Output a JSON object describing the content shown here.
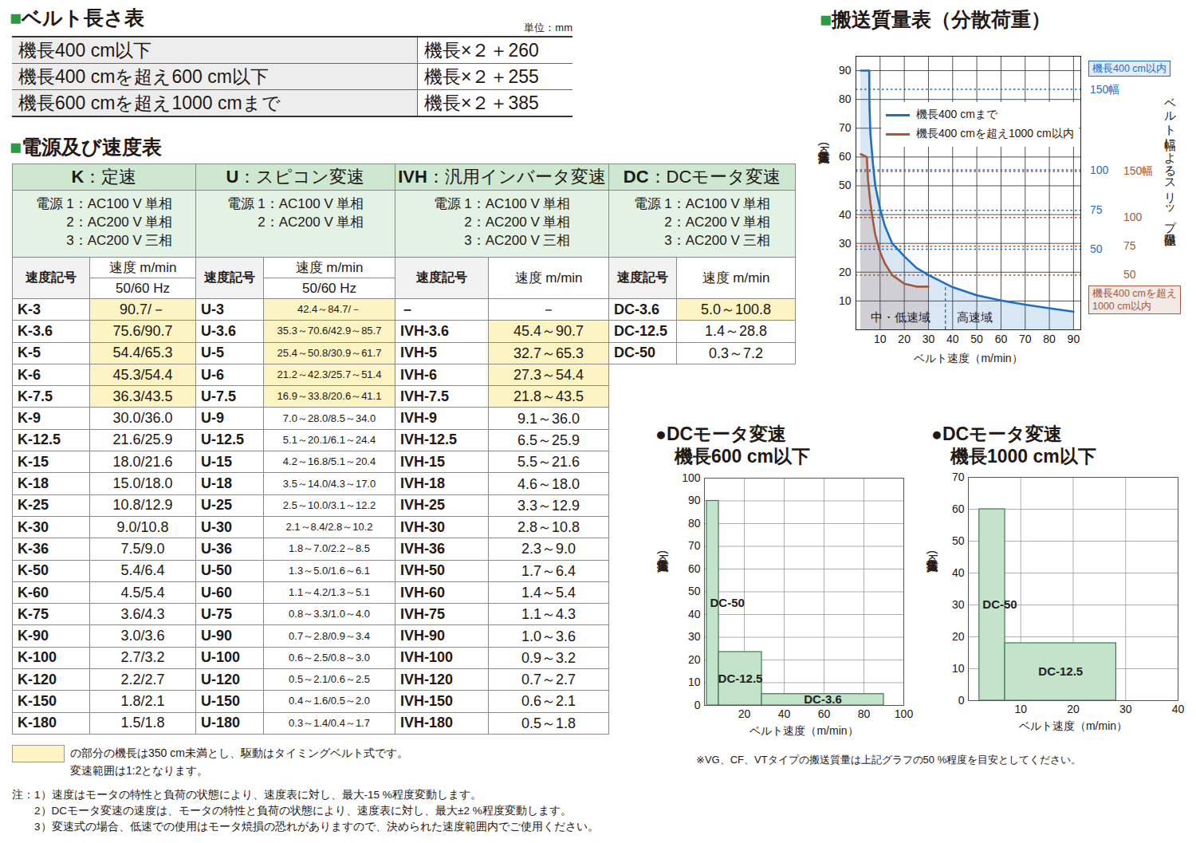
{
  "belt_length_table": {
    "title": "■ベルト長さ表",
    "unit": "単位：mm",
    "rows": [
      [
        "機長400 cm以下",
        "機長×２＋260"
      ],
      [
        "機長400 cmを超え600 cm以下",
        "機長×２＋255"
      ],
      [
        "機長600 cmを超え1000 cmまで",
        "機長×２＋385"
      ]
    ]
  },
  "power_speed_table": {
    "title": "■電源及び速度表",
    "sections": [
      {
        "title": "K：定速",
        "power": [
          "電源 1：AC100 V 単相",
          "2：AC200 V 単相",
          "3：AC200 V 三相"
        ],
        "headers": [
          "速度記号",
          "速度 m/min",
          "50/60 Hz"
        ],
        "rows": [
          [
            "K-3",
            "90.7/－"
          ],
          [
            "K-3.6",
            "75.6/90.7"
          ],
          [
            "K-5",
            "54.4/65.3"
          ],
          [
            "K-6",
            "45.3/54.4"
          ],
          [
            "K-7.5",
            "36.3/43.5"
          ],
          [
            "K-9",
            "30.0/36.0"
          ],
          [
            "K-12.5",
            "21.6/25.9"
          ],
          [
            "K-15",
            "18.0/21.6"
          ],
          [
            "K-18",
            "15.0/18.0"
          ],
          [
            "K-25",
            "10.8/12.9"
          ],
          [
            "K-30",
            "9.0/10.8"
          ],
          [
            "K-36",
            "7.5/9.0"
          ],
          [
            "K-50",
            "5.4/6.4"
          ],
          [
            "K-60",
            "4.5/5.4"
          ],
          [
            "K-75",
            "3.6/4.3"
          ],
          [
            "K-90",
            "3.0/3.6"
          ],
          [
            "K-100",
            "2.7/3.2"
          ],
          [
            "K-120",
            "2.2/2.7"
          ],
          [
            "K-150",
            "1.8/2.1"
          ],
          [
            "K-180",
            "1.5/1.8"
          ]
        ],
        "highlighted_rows": [
          0,
          1,
          2,
          3,
          4
        ]
      },
      {
        "title": "U：スピコン変速",
        "power": [
          "電源 1：AC100 V 単相",
          "2：AC200 V 単相"
        ],
        "headers": [
          "速度記号",
          "速度 m/min",
          "50/60 Hz"
        ],
        "rows": [
          [
            "U-3",
            "42.4～84.7/－"
          ],
          [
            "U-3.6",
            "35.3～70.6/42.9～85.7"
          ],
          [
            "U-5",
            "25.4～50.8/30.9～61.7"
          ],
          [
            "U-6",
            "21.2～42.3/25.7～51.4"
          ],
          [
            "U-7.5",
            "16.9～33.8/20.6～41.1"
          ],
          [
            "U-9",
            "7.0～28.0/8.5～34.0"
          ],
          [
            "U-12.5",
            "5.1～20.1/6.1～24.4"
          ],
          [
            "U-15",
            "4.2～16.8/5.1～20.4"
          ],
          [
            "U-18",
            "3.5～14.0/4.3～17.0"
          ],
          [
            "U-25",
            "2.5～10.0/3.1～12.2"
          ],
          [
            "U-30",
            "2.1～8.4/2.8～10.2"
          ],
          [
            "U-36",
            "1.8～7.0/2.2～8.5"
          ],
          [
            "U-50",
            "1.3～5.0/1.6～6.1"
          ],
          [
            "U-60",
            "1.1～4.2/1.3～5.1"
          ],
          [
            "U-75",
            "0.8～3.3/1.0～4.0"
          ],
          [
            "U-90",
            "0.7～2.8/0.9～3.4"
          ],
          [
            "U-100",
            "0.6～2.5/0.8～3.0"
          ],
          [
            "U-120",
            "0.5～2.1/0.6～2.5"
          ],
          [
            "U-150",
            "0.4～1.6/0.5～2.0"
          ],
          [
            "U-180",
            "0.3～1.4/0.4～1.7"
          ]
        ],
        "highlighted_rows": [
          0,
          1,
          2,
          3,
          4
        ]
      },
      {
        "title": "IVH：汎用インバータ変速",
        "power": [
          "電源 1：AC100 V 単相",
          "2：AC200 V 単相",
          "3：AC200 V 三相"
        ],
        "headers": [
          "速度記号",
          "速度 m/min"
        ],
        "rows": [
          [
            "－",
            "－"
          ],
          [
            "IVH-3.6",
            "45.4～90.7"
          ],
          [
            "IVH-5",
            "32.7～65.3"
          ],
          [
            "IVH-6",
            "27.3～54.4"
          ],
          [
            "IVH-7.5",
            "21.8～43.5"
          ],
          [
            "IVH-9",
            "9.1～36.0"
          ],
          [
            "IVH-12.5",
            "6.5～25.9"
          ],
          [
            "IVH-15",
            "5.5～21.6"
          ],
          [
            "IVH-18",
            "4.6～18.0"
          ],
          [
            "IVH-25",
            "3.3～12.9"
          ],
          [
            "IVH-30",
            "2.8～10.8"
          ],
          [
            "IVH-36",
            "2.3～9.0"
          ],
          [
            "IVH-50",
            "1.7～6.4"
          ],
          [
            "IVH-60",
            "1.4～5.4"
          ],
          [
            "IVH-75",
            "1.1～4.3"
          ],
          [
            "IVH-90",
            "1.0～3.6"
          ],
          [
            "IVH-100",
            "0.9～3.2"
          ],
          [
            "IVH-120",
            "0.7～2.7"
          ],
          [
            "IVH-150",
            "0.6～2.1"
          ],
          [
            "IVH-180",
            "0.5～1.8"
          ]
        ],
        "highlighted_rows": [
          1,
          2,
          3,
          4
        ]
      },
      {
        "title": "DC：DCモータ変速",
        "power": [
          "電源 1：AC100 V 単相",
          "2：AC200 V 単相",
          "3：AC200 V 三相"
        ],
        "headers": [
          "速度記号",
          "速度 m/min"
        ],
        "rows": [
          [
            "DC-3.6",
            "5.0～100.8"
          ],
          [
            "DC-12.5",
            "1.4～28.8"
          ],
          [
            "DC-50",
            "0.3～7.2"
          ]
        ],
        "highlighted_rows": [
          0
        ]
      }
    ]
  },
  "highlight_note": {
    "color": "#fcf4c2",
    "lines": [
      "の部分の機長は350 cm未満とし、駆動はタイミングベルト式です。",
      "変速範囲は1:2となります。"
    ]
  },
  "notes": [
    "注：1）速度はモータの特性と負荷の状態により、速度表に対し、最大-15 %程度変動します。",
    "2）DCモータ変速の速度は、モータの特性と負荷の状態により、速度表に対し、最大±2 %程度変動します。",
    "3）変速式の場合、低速での使用はモータ焼損の恐れがありますので、決められた速度範囲内でご使用ください。"
  ],
  "chart_data": [
    {
      "type": "line",
      "title": "■搬送質量表（分散荷重）",
      "x_label": "ベルト速度（m/min）",
      "y_label": "搬送質量(kg)",
      "xlim": [
        0,
        93
      ],
      "ylim": [
        0,
        95
      ],
      "xticks": [
        10,
        20,
        30,
        40,
        50,
        60,
        70,
        80,
        90
      ],
      "yticks": [
        10,
        20,
        30,
        40,
        50,
        60,
        70,
        80,
        90
      ],
      "grid": true,
      "legend": "top-right",
      "series": [
        {
          "name": "機長400 cmまで",
          "color": "#1f6fc0",
          "x": [
            2,
            5.5,
            5.6,
            6,
            7,
            8,
            10,
            12,
            15,
            20,
            25,
            30,
            40,
            50,
            60,
            70,
            80,
            90
          ],
          "values": [
            90,
            90,
            78,
            68,
            58,
            50,
            42,
            36,
            30,
            25.5,
            21.5,
            19,
            14.8,
            12,
            10.2,
            8.7,
            7.5,
            6.3
          ]
        },
        {
          "name": "機長400 cmを超え1000 cm以内",
          "color": "#a35a3c",
          "x": [
            2,
            4.5,
            5,
            6,
            7,
            8,
            10,
            12,
            15,
            20,
            25,
            30
          ],
          "values": [
            61,
            60,
            52,
            44,
            38,
            33,
            27,
            23,
            19,
            16,
            15,
            15
          ]
        }
      ],
      "slip_limits": {
        "title": "ベルト幅によるスリップ限界値",
        "groups": [
          {
            "name": "機長400 cm以内",
            "color": "#1f6fc0",
            "lines": [
              {
                "label": "150幅",
                "value": 83.5
              },
              {
                "label": "100",
                "value": 55.5
              },
              {
                "label": "75",
                "value": 41.5
              },
              {
                "label": "50",
                "value": 28
              }
            ]
          },
          {
            "name": "機長400 cmを超え\n1000 cm以内",
            "color": "#a35a3c",
            "lines": [
              {
                "label": "150幅",
                "value": 55
              },
              {
                "label": "100",
                "value": 39
              },
              {
                "label": "75",
                "value": 29
              },
              {
                "label": "50",
                "value": 19
              }
            ]
          }
        ]
      },
      "region_boundary": {
        "x": 37,
        "top": 16
      },
      "region_labels": [
        "中・低速域",
        "高速域"
      ]
    },
    {
      "type": "bar",
      "title": "●DCモータ変速\n機長600 cm以下",
      "x_label": "ベルト速度（m/min）",
      "y_label": "搬送質量(kg)",
      "xlim": [
        0,
        100
      ],
      "ylim": [
        0,
        100
      ],
      "xticks": [
        20,
        40,
        60,
        80,
        100
      ],
      "yticks": [
        0,
        10,
        20,
        30,
        40,
        50,
        60,
        70,
        80,
        90,
        100
      ],
      "grid": true,
      "color": "#c4e3cb",
      "bars": [
        {
          "name": "DC-50",
          "x1": 1.2,
          "x2": 7.2,
          "value": 90
        },
        {
          "name": "DC-12.5",
          "x1": 7.2,
          "x2": 28.8,
          "value": 23.5
        },
        {
          "name": "DC-3.6",
          "x1": 28.8,
          "x2": 90,
          "value": 5
        }
      ]
    },
    {
      "type": "bar",
      "title": "●DCモータ変速\n機長1000 cm以下",
      "x_label": "ベルト速度（m/min）",
      "y_label": "搬送質量(kg)",
      "xlim": [
        0,
        40
      ],
      "ylim": [
        0,
        70
      ],
      "xticks": [
        10,
        20,
        30,
        40
      ],
      "yticks": [
        0,
        10,
        20,
        30,
        40,
        50,
        60,
        70
      ],
      "grid": true,
      "color": "#c4e3cb",
      "bars": [
        {
          "name": "DC-50",
          "x1": 2.1,
          "x2": 7,
          "value": 60
        },
        {
          "name": "DC-12.5",
          "x1": 7,
          "x2": 28.2,
          "value": 18
        }
      ]
    }
  ],
  "chart_footnote": "※VG、CF、VTタイプの搬送質量は上記グラフの50 %程度を目安としてください。"
}
